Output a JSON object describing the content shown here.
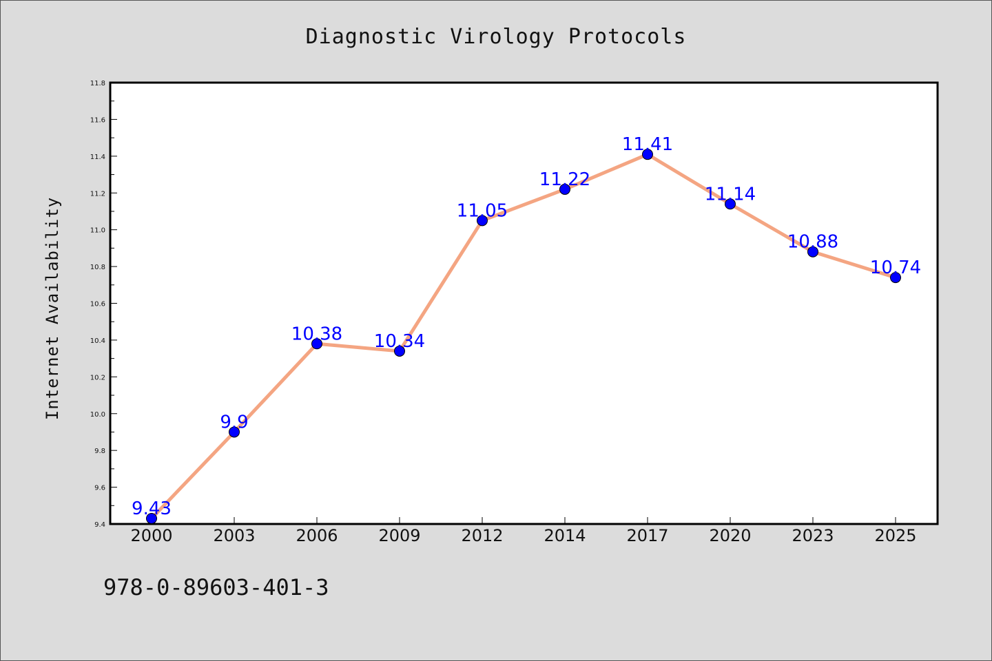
{
  "chart_data": {
    "type": "line",
    "title": "Diagnostic Virology Protocols",
    "xlabel": "",
    "ylabel": "Internet Availability",
    "categories": [
      "2000",
      "2003",
      "2006",
      "2009",
      "2012",
      "2014",
      "2017",
      "2020",
      "2023",
      "2025"
    ],
    "series": [
      {
        "values": [
          9.43,
          9.9,
          10.38,
          10.34,
          11.05,
          11.22,
          11.41,
          11.14,
          10.88,
          10.74
        ],
        "data_labels": [
          "9.43",
          "9.9",
          "10.38",
          "10.34",
          "11.05",
          "11.22",
          "11.41",
          "11.14",
          "10.88",
          "10.74"
        ],
        "line_color": "#f4a582",
        "marker_color": "#0000ff",
        "label_color": "#0000ff"
      }
    ],
    "ylim": [
      9.4,
      11.8
    ],
    "yticks": [
      "9.4",
      "9.6",
      "9.8",
      "10.0",
      "10.2",
      "10.4",
      "10.6",
      "10.8",
      "11.0",
      "11.2",
      "11.4",
      "11.6",
      "11.8"
    ],
    "grid": false,
    "legend": "none"
  },
  "footer": {
    "isbn": "978-0-89603-401-3"
  },
  "colors": {
    "background": "#dcdcdc",
    "plot_background": "#ffffff"
  }
}
